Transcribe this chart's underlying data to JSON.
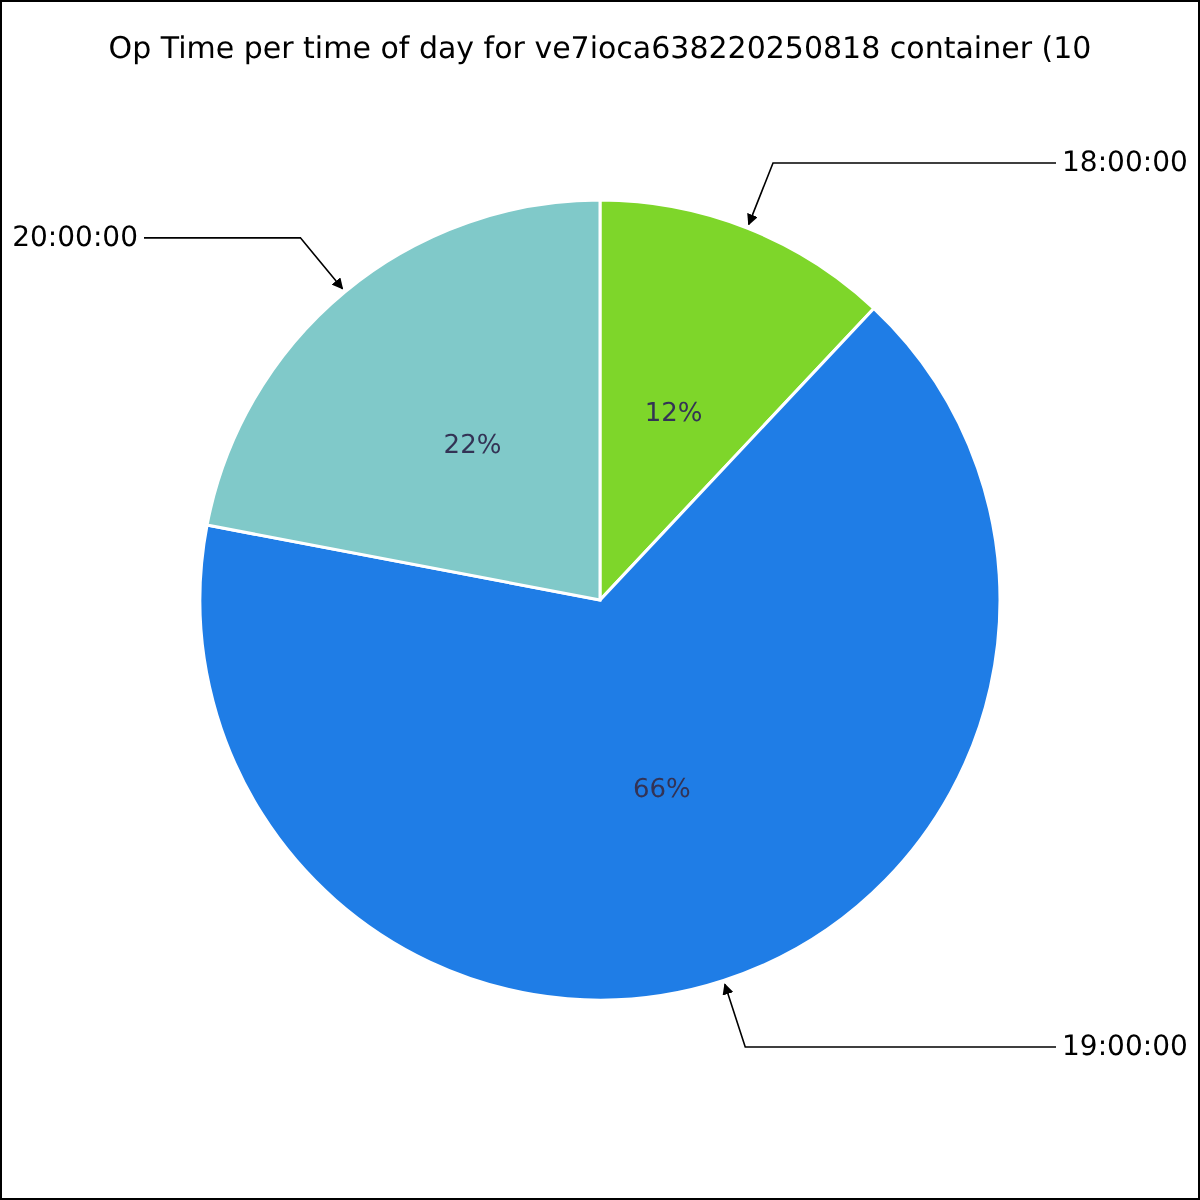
{
  "chart_data": {
    "type": "pie",
    "title": "Op Time per time of day for ve7ioca638220250818 container (10",
    "categories": [
      "18:00:00",
      "19:00:00",
      "20:00:00"
    ],
    "values": [
      12,
      66,
      22
    ],
    "value_labels": [
      "12%",
      "66%",
      "22%"
    ],
    "colors": [
      "#7ed62a",
      "#1f7de6",
      "#80c9c9"
    ]
  }
}
